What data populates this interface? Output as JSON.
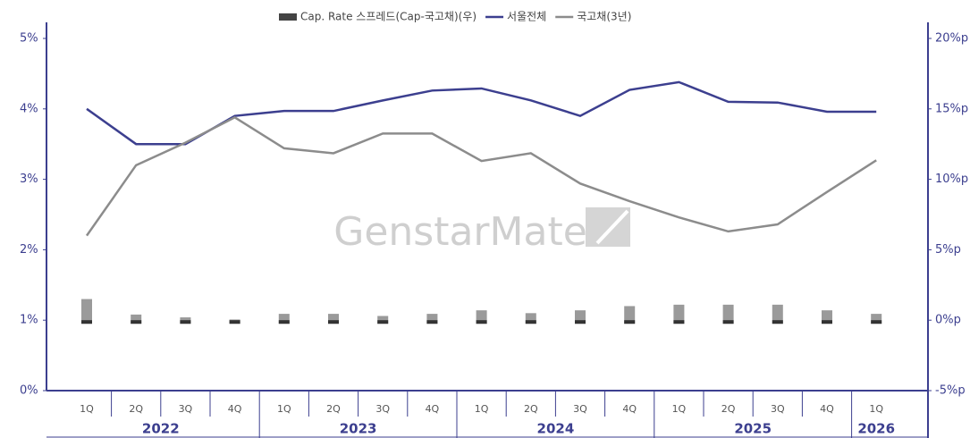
{
  "chart_data": {
    "type": "combo",
    "categories": [
      "1Q",
      "2Q",
      "3Q",
      "4Q",
      "1Q",
      "2Q",
      "3Q",
      "4Q",
      "1Q",
      "2Q",
      "3Q",
      "4Q",
      "1Q",
      "2Q",
      "3Q",
      "4Q",
      "1Q"
    ],
    "years": [
      "2022",
      "2023",
      "2024",
      "2025",
      "2026"
    ],
    "watermark": "GenstarMate",
    "series": [
      {
        "name": "Cap. Rate 스프레드(Cap-국고채)(우)",
        "type": "bar",
        "axis": "y2",
        "color": "#9a9a9a",
        "values": [
          1.5,
          0.4,
          0.2,
          0.05,
          0.45,
          0.45,
          0.3,
          0.45,
          0.7,
          0.5,
          0.7,
          1.0,
          1.1,
          1.1,
          1.1,
          0.7,
          0.45
        ]
      },
      {
        "name": "서울전체",
        "type": "line",
        "color": "#3c3f8f",
        "values": [
          4.0,
          3.5,
          3.5,
          3.9,
          3.97,
          3.97,
          4.12,
          4.26,
          4.29,
          4.12,
          3.9,
          4.27,
          4.38,
          4.1,
          4.09,
          3.96,
          3.96
        ]
      },
      {
        "name": "국고채(3년)",
        "type": "line",
        "color": "#8c8c8c",
        "values": [
          2.2,
          3.2,
          3.52,
          3.88,
          3.44,
          3.37,
          3.65,
          3.65,
          3.26,
          3.37,
          2.94,
          2.69,
          2.46,
          2.26,
          2.36,
          2.82,
          3.27
        ]
      }
    ],
    "ylim": [
      0,
      5
    ],
    "yticks": [
      {
        "value": 0,
        "label": "0%"
      },
      {
        "value": 1,
        "label": "1%"
      },
      {
        "value": 2,
        "label": "2%"
      },
      {
        "value": 3,
        "label": "3%"
      },
      {
        "value": 4,
        "label": "4%"
      },
      {
        "value": 5,
        "label": "5%"
      }
    ],
    "y2lim": [
      -5,
      20
    ],
    "y2ticks": [
      {
        "value": -5,
        "label": "-5%p"
      },
      {
        "value": 0,
        "label": "0%p"
      },
      {
        "value": 5,
        "label": "5%p"
      },
      {
        "value": 10,
        "label": "10%p"
      },
      {
        "value": 15,
        "label": "15%p"
      },
      {
        "value": 20,
        "label": "20%p"
      }
    ]
  }
}
